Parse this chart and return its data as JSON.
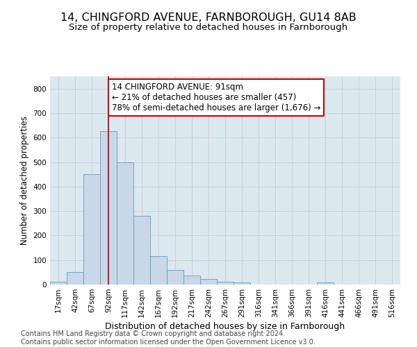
{
  "title": "14, CHINGFORD AVENUE, FARNBOROUGH, GU14 8AB",
  "subtitle": "Size of property relative to detached houses in Farnborough",
  "xlabel": "Distribution of detached houses by size in Farnborough",
  "ylabel": "Number of detached properties",
  "bin_labels": [
    "17sqm",
    "42sqm",
    "67sqm",
    "92sqm",
    "117sqm",
    "142sqm",
    "167sqm",
    "192sqm",
    "217sqm",
    "242sqm",
    "267sqm",
    "291sqm",
    "316sqm",
    "341sqm",
    "366sqm",
    "391sqm",
    "416sqm",
    "441sqm",
    "466sqm",
    "491sqm",
    "516sqm"
  ],
  "bar_values": [
    12,
    52,
    450,
    625,
    500,
    280,
    115,
    60,
    36,
    22,
    10,
    8,
    0,
    0,
    0,
    0,
    8,
    0,
    0,
    0,
    0
  ],
  "bar_color": "#c8d8e8",
  "bar_edge_color": "#6a9ab8",
  "vline_color": "#aa0000",
  "vline_x": 3,
  "annotation_line1": "14 CHINGFORD AVENUE: 91sqm",
  "annotation_line2": "← 21% of detached houses are smaller (457)",
  "annotation_line3": "78% of semi-detached houses are larger (1,676) →",
  "annotation_box_color": "#ffffff",
  "annotation_box_edge_color": "#cc0000",
  "ylim": [
    0,
    850
  ],
  "yticks": [
    0,
    100,
    200,
    300,
    400,
    500,
    600,
    700,
    800
  ],
  "grid_color": "#cccccc",
  "plot_bg_color": "#dce8f0",
  "fig_bg_color": "#ffffff",
  "footer_text": "Contains HM Land Registry data © Crown copyright and database right 2024.\nContains public sector information licensed under the Open Government Licence v3.0.",
  "title_fontsize": 11.5,
  "subtitle_fontsize": 9.5,
  "xlabel_fontsize": 9,
  "ylabel_fontsize": 8.5,
  "tick_fontsize": 7.5,
  "annotation_fontsize": 8.5,
  "footer_fontsize": 7
}
